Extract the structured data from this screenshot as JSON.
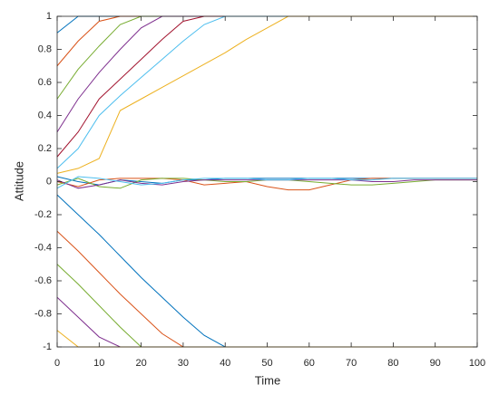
{
  "chart_data": {
    "type": "line",
    "x_label": "Time",
    "y_label": "Attitude",
    "x": [
      0,
      5,
      10,
      15,
      20,
      25,
      30,
      35,
      40,
      45,
      50,
      55,
      60,
      65,
      70,
      75,
      80,
      85,
      90,
      95,
      100
    ],
    "xlim": [
      0,
      100
    ],
    "xticks": [
      0,
      10,
      20,
      30,
      40,
      50,
      60,
      70,
      80,
      90,
      100
    ],
    "ylim": [
      -1,
      1
    ],
    "yticks": [
      -1,
      -0.8,
      -0.6,
      -0.4,
      -0.2,
      0,
      0.2,
      0.4,
      0.6,
      0.8,
      1
    ],
    "grid": false,
    "series": [
      {
        "color": "#0072BD",
        "values": [
          0.9,
          1,
          1,
          1,
          1,
          1,
          1,
          1,
          1,
          1,
          1,
          1,
          1,
          1,
          1,
          1,
          1,
          1,
          1,
          1,
          1
        ]
      },
      {
        "color": "#D95319",
        "values": [
          0.7,
          0.85,
          0.97,
          1,
          1,
          1,
          1,
          1,
          1,
          1,
          1,
          1,
          1,
          1,
          1,
          1,
          1,
          1,
          1,
          1,
          1
        ]
      },
      {
        "color": "#77AC30",
        "values": [
          0.5,
          0.68,
          0.82,
          0.95,
          1,
          1,
          1,
          1,
          1,
          1,
          1,
          1,
          1,
          1,
          1,
          1,
          1,
          1,
          1,
          1,
          1
        ]
      },
      {
        "color": "#7E2F8E",
        "values": [
          0.3,
          0.5,
          0.66,
          0.8,
          0.93,
          1,
          1,
          1,
          1,
          1,
          1,
          1,
          1,
          1,
          1,
          1,
          1,
          1,
          1,
          1,
          1
        ]
      },
      {
        "color": "#A2142F",
        "values": [
          0.15,
          0.3,
          0.5,
          0.62,
          0.74,
          0.86,
          0.97,
          1,
          1,
          1,
          1,
          1,
          1,
          1,
          1,
          1,
          1,
          1,
          1,
          1,
          1
        ]
      },
      {
        "color": "#4DBEEE",
        "values": [
          0.08,
          0.2,
          0.4,
          0.52,
          0.63,
          0.74,
          0.85,
          0.95,
          1,
          1,
          1,
          1,
          1,
          1,
          1,
          1,
          1,
          1,
          1,
          1,
          1
        ]
      },
      {
        "color": "#EDB120",
        "values": [
          0.05,
          0.08,
          0.14,
          0.43,
          0.5,
          0.57,
          0.64,
          0.71,
          0.78,
          0.86,
          0.93,
          1,
          1,
          1,
          1,
          1,
          1,
          1,
          1,
          1,
          1
        ]
      },
      {
        "color": "#0072BD",
        "values": [
          -0.08,
          -0.2,
          -0.32,
          -0.45,
          -0.58,
          -0.7,
          -0.82,
          -0.93,
          -1,
          -1,
          -1,
          -1,
          -1,
          -1,
          -1,
          -1,
          -1,
          -1,
          -1,
          -1,
          -1
        ]
      },
      {
        "color": "#D95319",
        "values": [
          -0.3,
          -0.42,
          -0.55,
          -0.68,
          -0.8,
          -0.92,
          -1,
          -1,
          -1,
          -1,
          -1,
          -1,
          -1,
          -1,
          -1,
          -1,
          -1,
          -1,
          -1,
          -1,
          -1
        ]
      },
      {
        "color": "#77AC30",
        "values": [
          -0.5,
          -0.62,
          -0.75,
          -0.88,
          -1,
          -1,
          -1,
          -1,
          -1,
          -1,
          -1,
          -1,
          -1,
          -1,
          -1,
          -1,
          -1,
          -1,
          -1,
          -1,
          -1
        ]
      },
      {
        "color": "#7E2F8E",
        "values": [
          -0.7,
          -0.82,
          -0.94,
          -1,
          -1,
          -1,
          -1,
          -1,
          -1,
          -1,
          -1,
          -1,
          -1,
          -1,
          -1,
          -1,
          -1,
          -1,
          -1,
          -1,
          -1
        ]
      },
      {
        "color": "#EDB120",
        "values": [
          -0.9,
          -1,
          -1,
          -1,
          -1,
          -1,
          -1,
          -1,
          -1,
          -1,
          -1,
          -1,
          -1,
          -1,
          -1,
          -1,
          -1,
          -1,
          -1,
          -1,
          -1
        ]
      },
      {
        "color": "#0072BD",
        "values": [
          0.03,
          0,
          -0.02,
          0.01,
          0,
          -0.01,
          0.01,
          0.01,
          0.02,
          0.02,
          0.02,
          0.02,
          0.02,
          0.02,
          0.02,
          0.02,
          0.02,
          0.02,
          0.02,
          0.02,
          0.02
        ]
      },
      {
        "color": "#D95319",
        "values": [
          0,
          -0.03,
          0.01,
          0.02,
          0.02,
          0.02,
          0.01,
          -0.02,
          -0.01,
          0,
          -0.03,
          -0.05,
          -0.05,
          -0.02,
          0.01,
          0.02,
          0.02,
          0.02,
          0.02,
          0.02,
          0.02
        ]
      },
      {
        "color": "#77AC30",
        "values": [
          -0.02,
          0.02,
          -0.03,
          -0.04,
          0.01,
          0.02,
          0.02,
          0.01,
          0,
          0,
          0.01,
          0.01,
          0,
          -0.01,
          -0.02,
          -0.02,
          -0.01,
          0,
          0.01,
          0.01,
          0.01
        ]
      },
      {
        "color": "#7E2F8E",
        "values": [
          0.01,
          -0.04,
          -0.02,
          0.01,
          -0.01,
          -0.02,
          0,
          0.01,
          0.01,
          0.01,
          0.01,
          0.01,
          0.01,
          0.01,
          0.01,
          0,
          0,
          0.01,
          0.01,
          0.01,
          0.01
        ]
      },
      {
        "color": "#4DBEEE",
        "values": [
          -0.04,
          0.03,
          0.02,
          0,
          -0.02,
          -0.01,
          0.01,
          0.02,
          0.02,
          0.02,
          0.01,
          0.01,
          0.02,
          0.02,
          0.01,
          0.01,
          0.02,
          0.02,
          0.02,
          0.02,
          0.02
        ]
      }
    ]
  }
}
